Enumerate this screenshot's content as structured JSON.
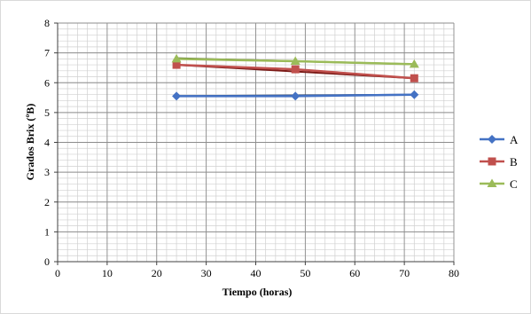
{
  "chart_data": {
    "type": "line",
    "title": "",
    "xlabel": "Tiempo (horas)",
    "ylabel": "Grados Brix (ºB)",
    "xlim": [
      0,
      80
    ],
    "ylim": [
      0,
      8
    ],
    "x_ticks": [
      0,
      10,
      20,
      30,
      40,
      50,
      60,
      70,
      80
    ],
    "y_ticks": [
      0,
      1,
      2,
      3,
      4,
      5,
      6,
      7,
      8
    ],
    "grid": "major and minor",
    "legend_position": "right",
    "series": [
      {
        "name": "A",
        "color": "#4472C4",
        "trend_color": "#1F3864",
        "marker": "diamond",
        "points": [
          {
            "x": 24,
            "y": 5.55
          },
          {
            "x": 48,
            "y": 5.55
          },
          {
            "x": 72,
            "y": 5.6
          }
        ],
        "trendline": [
          {
            "x": 24,
            "y": 5.55
          },
          {
            "x": 72,
            "y": 5.6
          }
        ]
      },
      {
        "name": "B",
        "color": "#C0504D",
        "trend_color": "#7B1A17",
        "marker": "square",
        "points": [
          {
            "x": 24,
            "y": 6.6
          },
          {
            "x": 48,
            "y": 6.45
          },
          {
            "x": 72,
            "y": 6.15
          }
        ],
        "trendline": [
          {
            "x": 24,
            "y": 6.6
          },
          {
            "x": 72,
            "y": 6.15
          }
        ]
      },
      {
        "name": "C",
        "color": "#9BBB59",
        "trend_color": "#4F6228",
        "marker": "triangle",
        "points": [
          {
            "x": 24,
            "y": 6.8
          },
          {
            "x": 48,
            "y": 6.72
          },
          {
            "x": 72,
            "y": 6.62
          }
        ],
        "trendline": [
          {
            "x": 24,
            "y": 6.82
          },
          {
            "x": 72,
            "y": 6.62
          }
        ]
      }
    ]
  }
}
